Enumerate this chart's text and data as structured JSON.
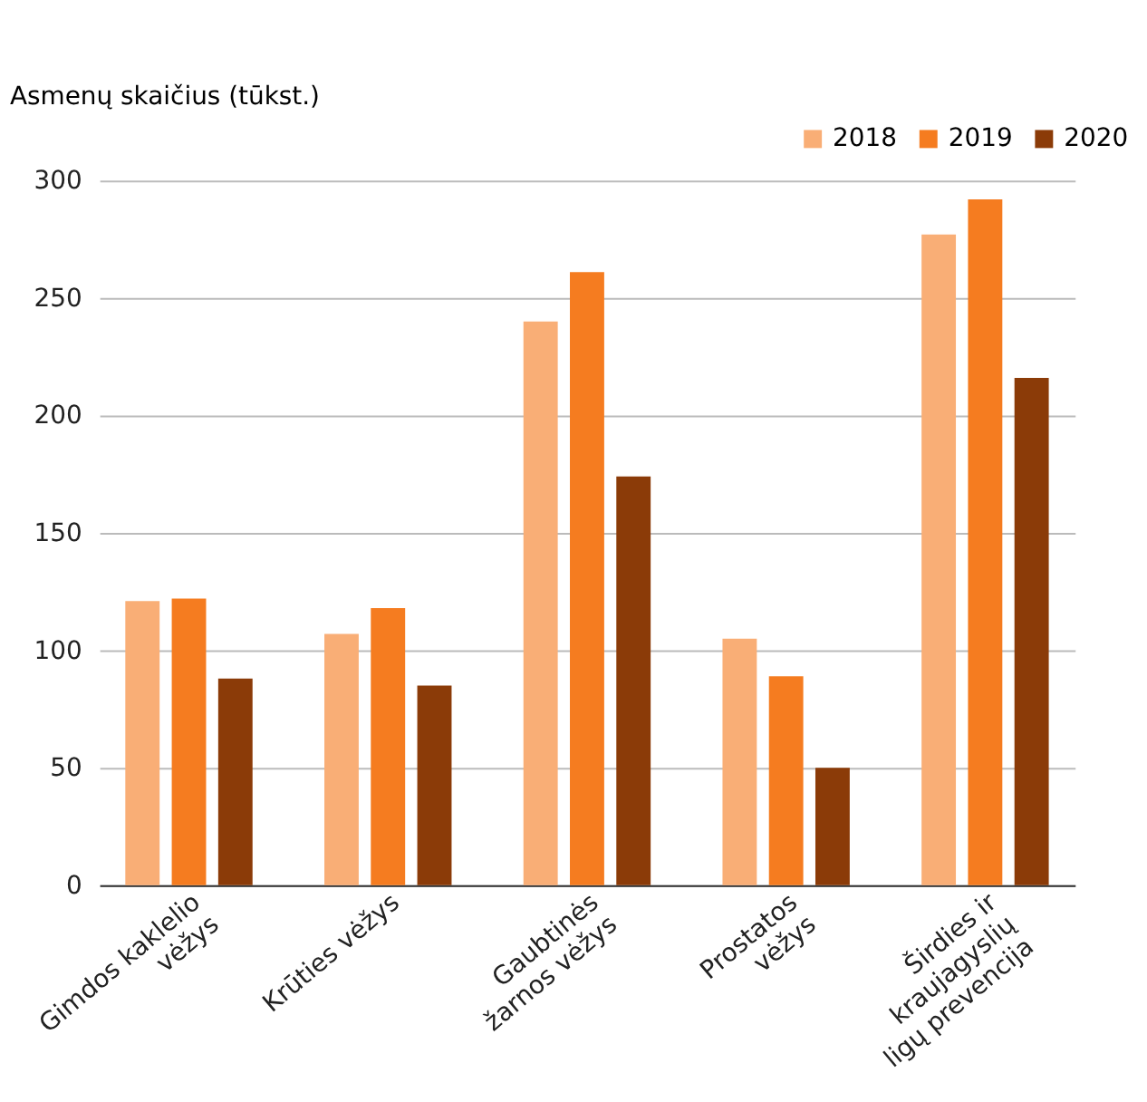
{
  "chart_data": {
    "type": "bar",
    "ylabel": "Asmenų skaičius (tūkst.)",
    "categories": [
      "Gimdos kaklelio\nvėžys",
      "Krūties vėžys",
      "Gaubtinės\nžarnos vėžys",
      "Prostatos\nvėžys",
      "Širdies ir\nkraujagyslių\nligų prevencija"
    ],
    "series": [
      {
        "name": "2018",
        "color": "#f9ae76",
        "values": [
          121,
          107,
          240,
          105,
          277
        ]
      },
      {
        "name": "2019",
        "color": "#f57c20",
        "values": [
          122,
          118,
          261,
          89,
          292
        ]
      },
      {
        "name": "2020",
        "color": "#8b3b08",
        "values": [
          88,
          85,
          174,
          50,
          216
        ]
      }
    ],
    "ylim": [
      0,
      300
    ],
    "yticks": [
      0,
      50,
      100,
      150,
      200,
      250,
      300
    ],
    "grid": "y",
    "legend": "top right"
  }
}
